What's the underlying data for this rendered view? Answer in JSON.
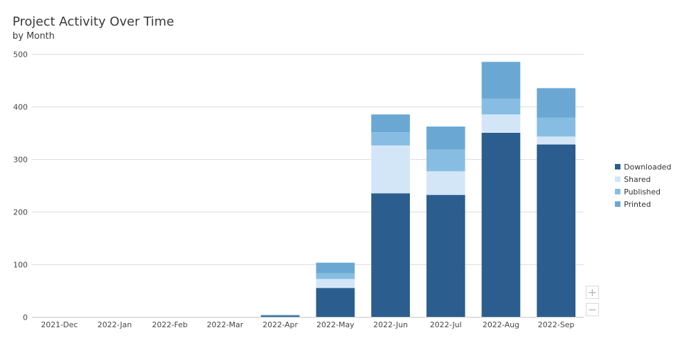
{
  "chart_data": {
    "type": "bar",
    "stacked": true,
    "title": "Project Activity Over Time",
    "subtitle": "by Month",
    "categories": [
      "2021-Dec",
      "2022-Jan",
      "2022-Feb",
      "2022-Mar",
      "2022-Apr",
      "2022-May",
      "2022-Jun",
      "2022-Jul",
      "2022-Aug",
      "2022-Sep"
    ],
    "series": [
      {
        "name": "Downloaded",
        "color": "#2b5e8f",
        "values": [
          0,
          0,
          0,
          0,
          2,
          55,
          235,
          232,
          350,
          328
        ]
      },
      {
        "name": "Shared",
        "color": "#d3e6f8",
        "values": [
          0,
          0,
          0,
          0,
          0,
          17,
          91,
          45,
          35,
          15
        ]
      },
      {
        "name": "Published",
        "color": "#87bde2",
        "values": [
          0,
          0,
          0,
          0,
          1,
          11,
          25,
          41,
          30,
          36
        ]
      },
      {
        "name": "Printed",
        "color": "#6aa8d3",
        "values": [
          0,
          0,
          0,
          0,
          1,
          20,
          34,
          44,
          70,
          56
        ]
      }
    ],
    "ylim": [
      0,
      500
    ],
    "yticks": [
      0,
      100,
      200,
      300,
      400,
      500
    ],
    "xlabel": "",
    "ylabel": "",
    "grid": true,
    "legend_position": "right"
  },
  "controls": {
    "zoom_in_label": "+",
    "zoom_out_label": "−"
  }
}
